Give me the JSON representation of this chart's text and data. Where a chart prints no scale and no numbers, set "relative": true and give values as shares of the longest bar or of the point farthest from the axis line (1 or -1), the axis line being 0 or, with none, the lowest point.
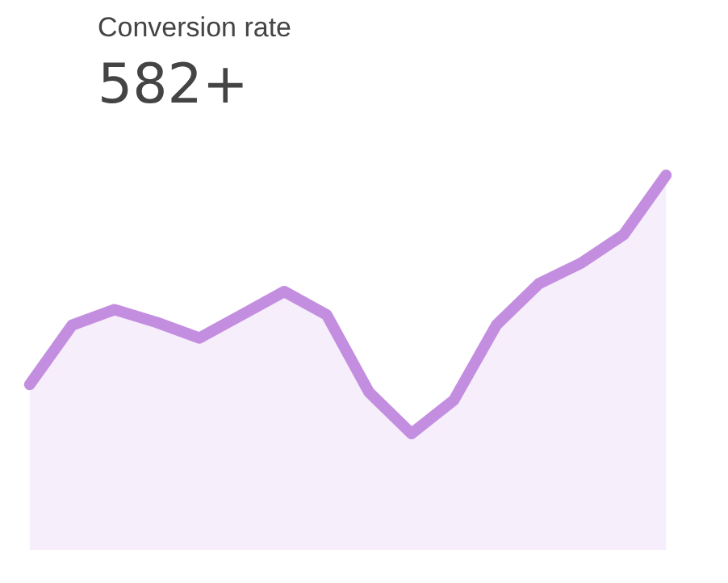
{
  "chart_data": {
    "type": "area",
    "title": "Conversion rate",
    "subtitle": "582+",
    "relative": true,
    "categories": [
      null,
      null,
      null,
      null,
      null,
      null,
      null,
      null,
      null,
      null,
      null,
      null,
      null,
      null,
      null,
      null
    ],
    "series": [
      {
        "color": "#c48ee0",
        "values": [
          0.19,
          0.42,
          0.48,
          0.43,
          0.37,
          0.46,
          0.55,
          0.46,
          0.16,
          0,
          0.13,
          0.42,
          0.58,
          0.66,
          0.77,
          1
        ]
      }
    ],
    "line_style": "solid"
  }
}
